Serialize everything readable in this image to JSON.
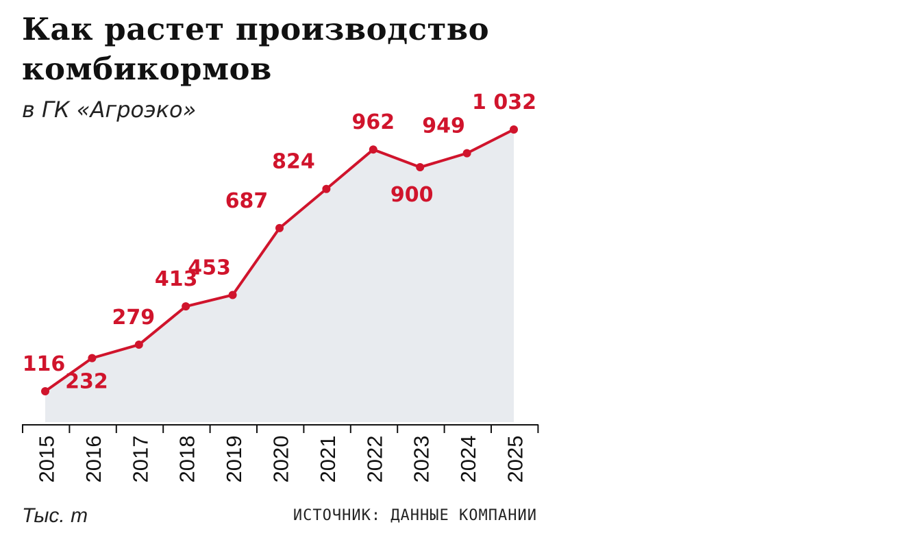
{
  "header": {
    "title": "Как растет производство комбикормов",
    "subtitle": "в ГК «Агроэко»"
  },
  "footer": {
    "units": "Тыс. т",
    "source": "ИСТОЧНИК: ДАННЫЕ КОМПАНИИ"
  },
  "colors": {
    "line": "#d0142c",
    "area": "#e8ebef",
    "axis": "#111111",
    "tick_label": "#111111"
  },
  "chart_data": {
    "type": "area",
    "title": "Как растет производство комбикормов",
    "subtitle": "в ГК «Агроэко»",
    "categories": [
      "2015",
      "2016",
      "2017",
      "2018",
      "2019",
      "2020",
      "2021",
      "2022",
      "2023",
      "2024",
      "2025"
    ],
    "series": [
      {
        "values": [
          116,
          232,
          279,
          413,
          453,
          687,
          824,
          962,
          900,
          949,
          1032
        ],
        "labels": [
          "116",
          "232",
          "279",
          "413",
          "453",
          "687",
          "824",
          "962",
          "900",
          "949",
          "1 032"
        ],
        "label_positions": [
          "above",
          "below",
          "above",
          "above",
          "above",
          "above",
          "above",
          "above",
          "below",
          "above",
          "above"
        ]
      }
    ],
    "ylabel": "Тыс. т",
    "ylim": [
      0,
      1100
    ],
    "grid": false,
    "legend": "none"
  }
}
